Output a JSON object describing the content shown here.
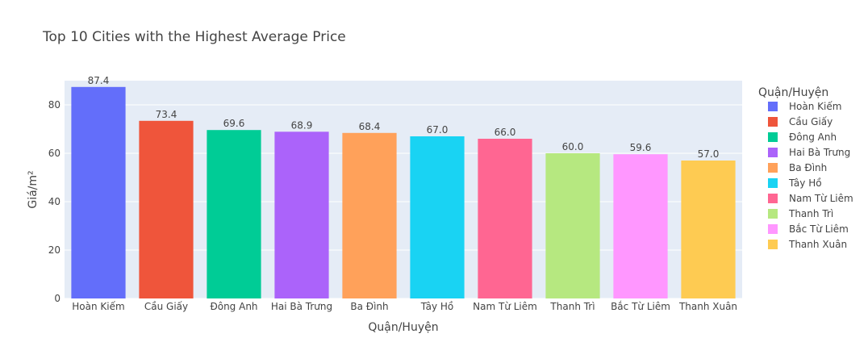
{
  "chart_data": {
    "type": "bar",
    "title": "Top 10 Cities with the Highest Average Price",
    "xlabel": "Quận/Huyện",
    "ylabel": "Giá/m²",
    "ylim": [
      0,
      90
    ],
    "yticks": [
      0,
      20,
      40,
      60,
      80
    ],
    "grid": true,
    "legend_title": "Quận/Huyện",
    "legend_position": "right",
    "categories": [
      "Hoàn Kiếm",
      "Cầu Giấy",
      "Đông Anh",
      "Hai Bà Trưng",
      "Ba Đình",
      "Tây Hồ",
      "Nam Từ Liêm",
      "Thanh Trì",
      "Bắc Từ Liêm",
      "Thanh Xuân"
    ],
    "values": [
      87.4,
      73.4,
      69.6,
      68.9,
      68.4,
      67.0,
      66.0,
      60.0,
      59.6,
      57.0
    ],
    "value_labels": [
      "87.4",
      "73.4",
      "69.6",
      "68.9",
      "68.4",
      "67.0",
      "66.0",
      "60.0",
      "59.6",
      "57.0"
    ],
    "colors": [
      "#636efa",
      "#ef553b",
      "#00cc96",
      "#ab63fa",
      "#ffa15a",
      "#19d3f3",
      "#ff6692",
      "#b6e880",
      "#ff97ff",
      "#fecb52"
    ],
    "plot_background": "#e5ecf6"
  }
}
